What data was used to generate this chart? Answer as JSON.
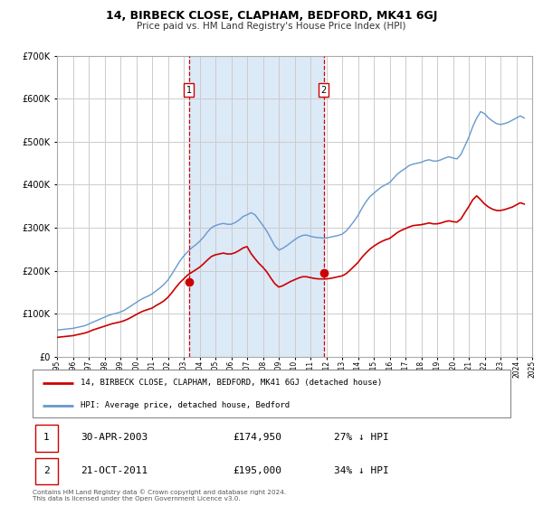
{
  "title": "14, BIRBECK CLOSE, CLAPHAM, BEDFORD, MK41 6GJ",
  "subtitle": "Price paid vs. HM Land Registry's House Price Index (HPI)",
  "legend_line1": "14, BIRBECK CLOSE, CLAPHAM, BEDFORD, MK41 6GJ (detached house)",
  "legend_line2": "HPI: Average price, detached house, Bedford",
  "footer": "Contains HM Land Registry data © Crown copyright and database right 2024.\nThis data is licensed under the Open Government Licence v3.0.",
  "sale1_label": "1",
  "sale1_date": "30-APR-2003",
  "sale1_price": "£174,950",
  "sale1_hpi": "27% ↓ HPI",
  "sale2_label": "2",
  "sale2_date": "21-OCT-2011",
  "sale2_price": "£195,000",
  "sale2_hpi": "34% ↓ HPI",
  "sale1_x": 2003.33,
  "sale1_y": 174950,
  "sale2_x": 2011.83,
  "sale2_y": 195000,
  "vline1_x": 2003.33,
  "vline2_x": 2011.83,
  "shade_color": "#dce9f7",
  "red_line_color": "#cc0000",
  "blue_line_color": "#6699cc",
  "dot_color": "#cc0000",
  "ylim": [
    0,
    700000
  ],
  "xlim": [
    1995,
    2025
  ],
  "background_color": "#ffffff",
  "grid_color": "#cccccc",
  "hpi_data_x": [
    1995.0,
    1995.25,
    1995.5,
    1995.75,
    1996.0,
    1996.25,
    1996.5,
    1996.75,
    1997.0,
    1997.25,
    1997.5,
    1997.75,
    1998.0,
    1998.25,
    1998.5,
    1998.75,
    1999.0,
    1999.25,
    1999.5,
    1999.75,
    2000.0,
    2000.25,
    2000.5,
    2000.75,
    2001.0,
    2001.25,
    2001.5,
    2001.75,
    2002.0,
    2002.25,
    2002.5,
    2002.75,
    2003.0,
    2003.25,
    2003.5,
    2003.75,
    2004.0,
    2004.25,
    2004.5,
    2004.75,
    2005.0,
    2005.25,
    2005.5,
    2005.75,
    2006.0,
    2006.25,
    2006.5,
    2006.75,
    2007.0,
    2007.25,
    2007.5,
    2007.75,
    2008.0,
    2008.25,
    2008.5,
    2008.75,
    2009.0,
    2009.25,
    2009.5,
    2009.75,
    2010.0,
    2010.25,
    2010.5,
    2010.75,
    2011.0,
    2011.25,
    2011.5,
    2011.75,
    2012.0,
    2012.25,
    2012.5,
    2012.75,
    2013.0,
    2013.25,
    2013.5,
    2013.75,
    2014.0,
    2014.25,
    2014.5,
    2014.75,
    2015.0,
    2015.25,
    2015.5,
    2015.75,
    2016.0,
    2016.25,
    2016.5,
    2016.75,
    2017.0,
    2017.25,
    2017.5,
    2017.75,
    2018.0,
    2018.25,
    2018.5,
    2018.75,
    2019.0,
    2019.25,
    2019.5,
    2019.75,
    2020.0,
    2020.25,
    2020.5,
    2020.75,
    2021.0,
    2021.25,
    2021.5,
    2021.75,
    2022.0,
    2022.25,
    2022.5,
    2022.75,
    2023.0,
    2023.25,
    2023.5,
    2023.75,
    2024.0,
    2024.25,
    2024.5
  ],
  "hpi_data_y": [
    62000,
    63000,
    64000,
    65000,
    66000,
    68000,
    70000,
    72000,
    76000,
    80000,
    84000,
    88000,
    92000,
    96000,
    99000,
    101000,
    104000,
    108000,
    114000,
    120000,
    126000,
    132000,
    137000,
    141000,
    146000,
    153000,
    160000,
    168000,
    178000,
    192000,
    207000,
    222000,
    234000,
    244000,
    253000,
    260000,
    268000,
    278000,
    290000,
    300000,
    305000,
    308000,
    310000,
    308000,
    308000,
    312000,
    318000,
    326000,
    330000,
    335000,
    330000,
    318000,
    305000,
    292000,
    275000,
    258000,
    248000,
    252000,
    258000,
    265000,
    272000,
    278000,
    282000,
    283000,
    280000,
    278000,
    277000,
    276000,
    276000,
    278000,
    280000,
    282000,
    285000,
    292000,
    303000,
    315000,
    328000,
    345000,
    360000,
    372000,
    380000,
    388000,
    395000,
    400000,
    405000,
    415000,
    425000,
    432000,
    438000,
    445000,
    448000,
    450000,
    452000,
    456000,
    458000,
    455000,
    455000,
    458000,
    462000,
    465000,
    462000,
    460000,
    470000,
    490000,
    510000,
    535000,
    555000,
    570000,
    565000,
    555000,
    548000,
    542000,
    540000,
    542000,
    545000,
    550000,
    555000,
    560000,
    555000
  ],
  "red_data_x": [
    1995.0,
    1995.25,
    1995.5,
    1995.75,
    1996.0,
    1996.25,
    1996.5,
    1996.75,
    1997.0,
    1997.25,
    1997.5,
    1997.75,
    1998.0,
    1998.25,
    1998.5,
    1998.75,
    1999.0,
    1999.25,
    1999.5,
    1999.75,
    2000.0,
    2000.25,
    2000.5,
    2000.75,
    2001.0,
    2001.25,
    2001.5,
    2001.75,
    2002.0,
    2002.25,
    2002.5,
    2002.75,
    2003.0,
    2003.25,
    2003.5,
    2003.75,
    2004.0,
    2004.25,
    2004.5,
    2004.75,
    2005.0,
    2005.25,
    2005.5,
    2005.75,
    2006.0,
    2006.25,
    2006.5,
    2006.75,
    2007.0,
    2007.25,
    2007.5,
    2007.75,
    2008.0,
    2008.25,
    2008.5,
    2008.75,
    2009.0,
    2009.25,
    2009.5,
    2009.75,
    2010.0,
    2010.25,
    2010.5,
    2010.75,
    2011.0,
    2011.25,
    2011.5,
    2011.75,
    2012.0,
    2012.25,
    2012.5,
    2012.75,
    2013.0,
    2013.25,
    2013.5,
    2013.75,
    2014.0,
    2014.25,
    2014.5,
    2014.75,
    2015.0,
    2015.25,
    2015.5,
    2015.75,
    2016.0,
    2016.25,
    2016.5,
    2016.75,
    2017.0,
    2017.25,
    2017.5,
    2017.75,
    2018.0,
    2018.25,
    2018.5,
    2018.75,
    2019.0,
    2019.25,
    2019.5,
    2019.75,
    2020.0,
    2020.25,
    2020.5,
    2020.75,
    2021.0,
    2021.25,
    2021.5,
    2021.75,
    2022.0,
    2022.25,
    2022.5,
    2022.75,
    2023.0,
    2023.25,
    2023.5,
    2023.75,
    2024.0,
    2024.25,
    2024.5
  ],
  "red_data_y": [
    45000,
    46000,
    47000,
    48000,
    49000,
    51000,
    53000,
    55000,
    58000,
    62000,
    65000,
    68000,
    71000,
    74000,
    77000,
    79000,
    81000,
    84000,
    88000,
    93000,
    98000,
    103000,
    107000,
    110000,
    113000,
    119000,
    124000,
    130000,
    138000,
    149000,
    161000,
    172000,
    181000,
    190000,
    196000,
    202000,
    208000,
    216000,
    225000,
    233000,
    237000,
    239000,
    241000,
    239000,
    239000,
    242000,
    247000,
    253000,
    256000,
    240000,
    228000,
    217000,
    208000,
    197000,
    183000,
    170000,
    162000,
    165000,
    170000,
    175000,
    179000,
    183000,
    186000,
    186000,
    184000,
    182000,
    181000,
    181000,
    181000,
    182000,
    184000,
    186000,
    188000,
    193000,
    201000,
    210000,
    219000,
    231000,
    241000,
    250000,
    257000,
    263000,
    268000,
    272000,
    275000,
    282000,
    289000,
    294000,
    298000,
    302000,
    305000,
    306000,
    307000,
    309000,
    311000,
    309000,
    309000,
    311000,
    314000,
    316000,
    314000,
    313000,
    320000,
    335000,
    349000,
    365000,
    374000,
    365000,
    355000,
    348000,
    343000,
    340000,
    340000,
    342000,
    345000,
    348000,
    353000,
    358000,
    355000
  ]
}
